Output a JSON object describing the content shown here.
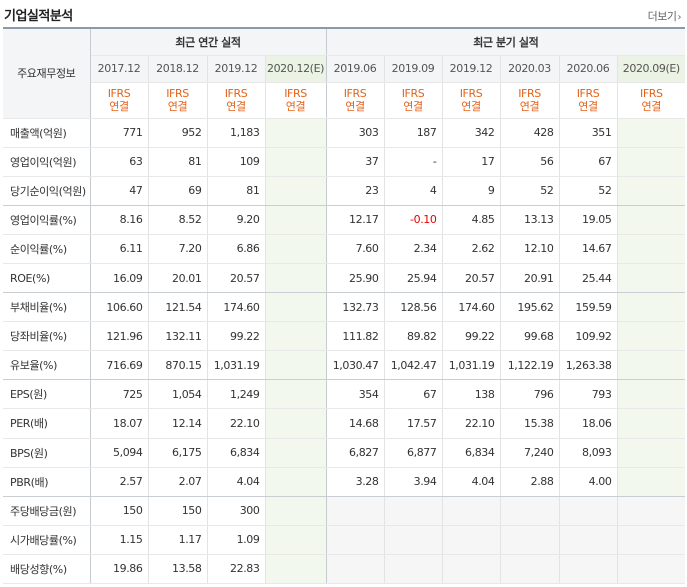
{
  "section_title": "기업실적분석",
  "more_label": "더보기",
  "more_chevron": "›",
  "header": {
    "left_label": "주요재무정보",
    "annual_group": "최근 연간 실적",
    "quarter_group": "최근 분기 실적",
    "annual_periods": [
      "2017.12",
      "2018.12",
      "2019.12",
      "2020.12(E)"
    ],
    "quarter_periods": [
      "2019.06",
      "2019.09",
      "2019.12",
      "2020.03",
      "2020.06",
      "2020.09(E)"
    ],
    "basis_line1": "IFRS",
    "basis_line2": "연결"
  },
  "rows": [
    {
      "label": "매출액(억원)",
      "annual": [
        "771",
        "952",
        "1,183",
        ""
      ],
      "quarter": [
        "303",
        "187",
        "342",
        "428",
        "351",
        ""
      ]
    },
    {
      "label": "영업이익(억원)",
      "annual": [
        "63",
        "81",
        "109",
        ""
      ],
      "quarter": [
        "37",
        "-",
        "17",
        "56",
        "67",
        ""
      ]
    },
    {
      "label": "당기순이익(억원)",
      "annual": [
        "47",
        "69",
        "81",
        ""
      ],
      "quarter": [
        "23",
        "4",
        "9",
        "52",
        "52",
        ""
      ]
    },
    {
      "label": "영업이익률(%)",
      "annual": [
        "8.16",
        "8.52",
        "9.20",
        ""
      ],
      "quarter": [
        "12.17",
        "-0.10",
        "4.85",
        "13.13",
        "19.05",
        ""
      ]
    },
    {
      "label": "순이익률(%)",
      "annual": [
        "6.11",
        "7.20",
        "6.86",
        ""
      ],
      "quarter": [
        "7.60",
        "2.34",
        "2.62",
        "12.10",
        "14.67",
        ""
      ]
    },
    {
      "label": "ROE(%)",
      "annual": [
        "16.09",
        "20.01",
        "20.57",
        ""
      ],
      "quarter": [
        "25.90",
        "25.94",
        "20.57",
        "20.91",
        "25.44",
        ""
      ]
    },
    {
      "label": "부채비율(%)",
      "annual": [
        "106.60",
        "121.54",
        "174.60",
        ""
      ],
      "quarter": [
        "132.73",
        "128.56",
        "174.60",
        "195.62",
        "159.59",
        ""
      ]
    },
    {
      "label": "당좌비율(%)",
      "annual": [
        "121.96",
        "132.11",
        "99.22",
        ""
      ],
      "quarter": [
        "111.82",
        "89.82",
        "99.22",
        "99.68",
        "109.92",
        ""
      ]
    },
    {
      "label": "유보율(%)",
      "annual": [
        "716.69",
        "870.15",
        "1,031.19",
        ""
      ],
      "quarter": [
        "1,030.47",
        "1,042.47",
        "1,031.19",
        "1,122.19",
        "1,263.38",
        ""
      ]
    },
    {
      "label": "EPS(원)",
      "annual": [
        "725",
        "1,054",
        "1,249",
        ""
      ],
      "quarter": [
        "354",
        "67",
        "138",
        "796",
        "793",
        ""
      ]
    },
    {
      "label": "PER(배)",
      "annual": [
        "18.07",
        "12.14",
        "22.10",
        ""
      ],
      "quarter": [
        "14.68",
        "17.57",
        "22.10",
        "15.38",
        "18.06",
        ""
      ]
    },
    {
      "label": "BPS(원)",
      "annual": [
        "5,094",
        "6,175",
        "6,834",
        ""
      ],
      "quarter": [
        "6,827",
        "6,877",
        "6,834",
        "7,240",
        "8,093",
        ""
      ]
    },
    {
      "label": "PBR(배)",
      "annual": [
        "2.57",
        "2.07",
        "4.04",
        ""
      ],
      "quarter": [
        "3.28",
        "3.94",
        "4.04",
        "2.88",
        "4.00",
        ""
      ]
    },
    {
      "label": "주당배당금(원)",
      "annual": [
        "150",
        "150",
        "300",
        ""
      ],
      "quarter": [
        "",
        "",
        "",
        "",
        "",
        ""
      ]
    },
    {
      "label": "시가배당률(%)",
      "annual": [
        "1.15",
        "1.17",
        "1.09",
        ""
      ],
      "quarter": [
        "",
        "",
        "",
        "",
        "",
        ""
      ]
    },
    {
      "label": "배당성향(%)",
      "annual": [
        "19.86",
        "13.58",
        "22.83",
        ""
      ],
      "quarter": [
        "",
        "",
        "",
        "",
        "",
        ""
      ]
    }
  ],
  "colors": {
    "negative": "#e60000",
    "basis": "#e4621a",
    "estimate_bg": "#f2f8ee"
  }
}
